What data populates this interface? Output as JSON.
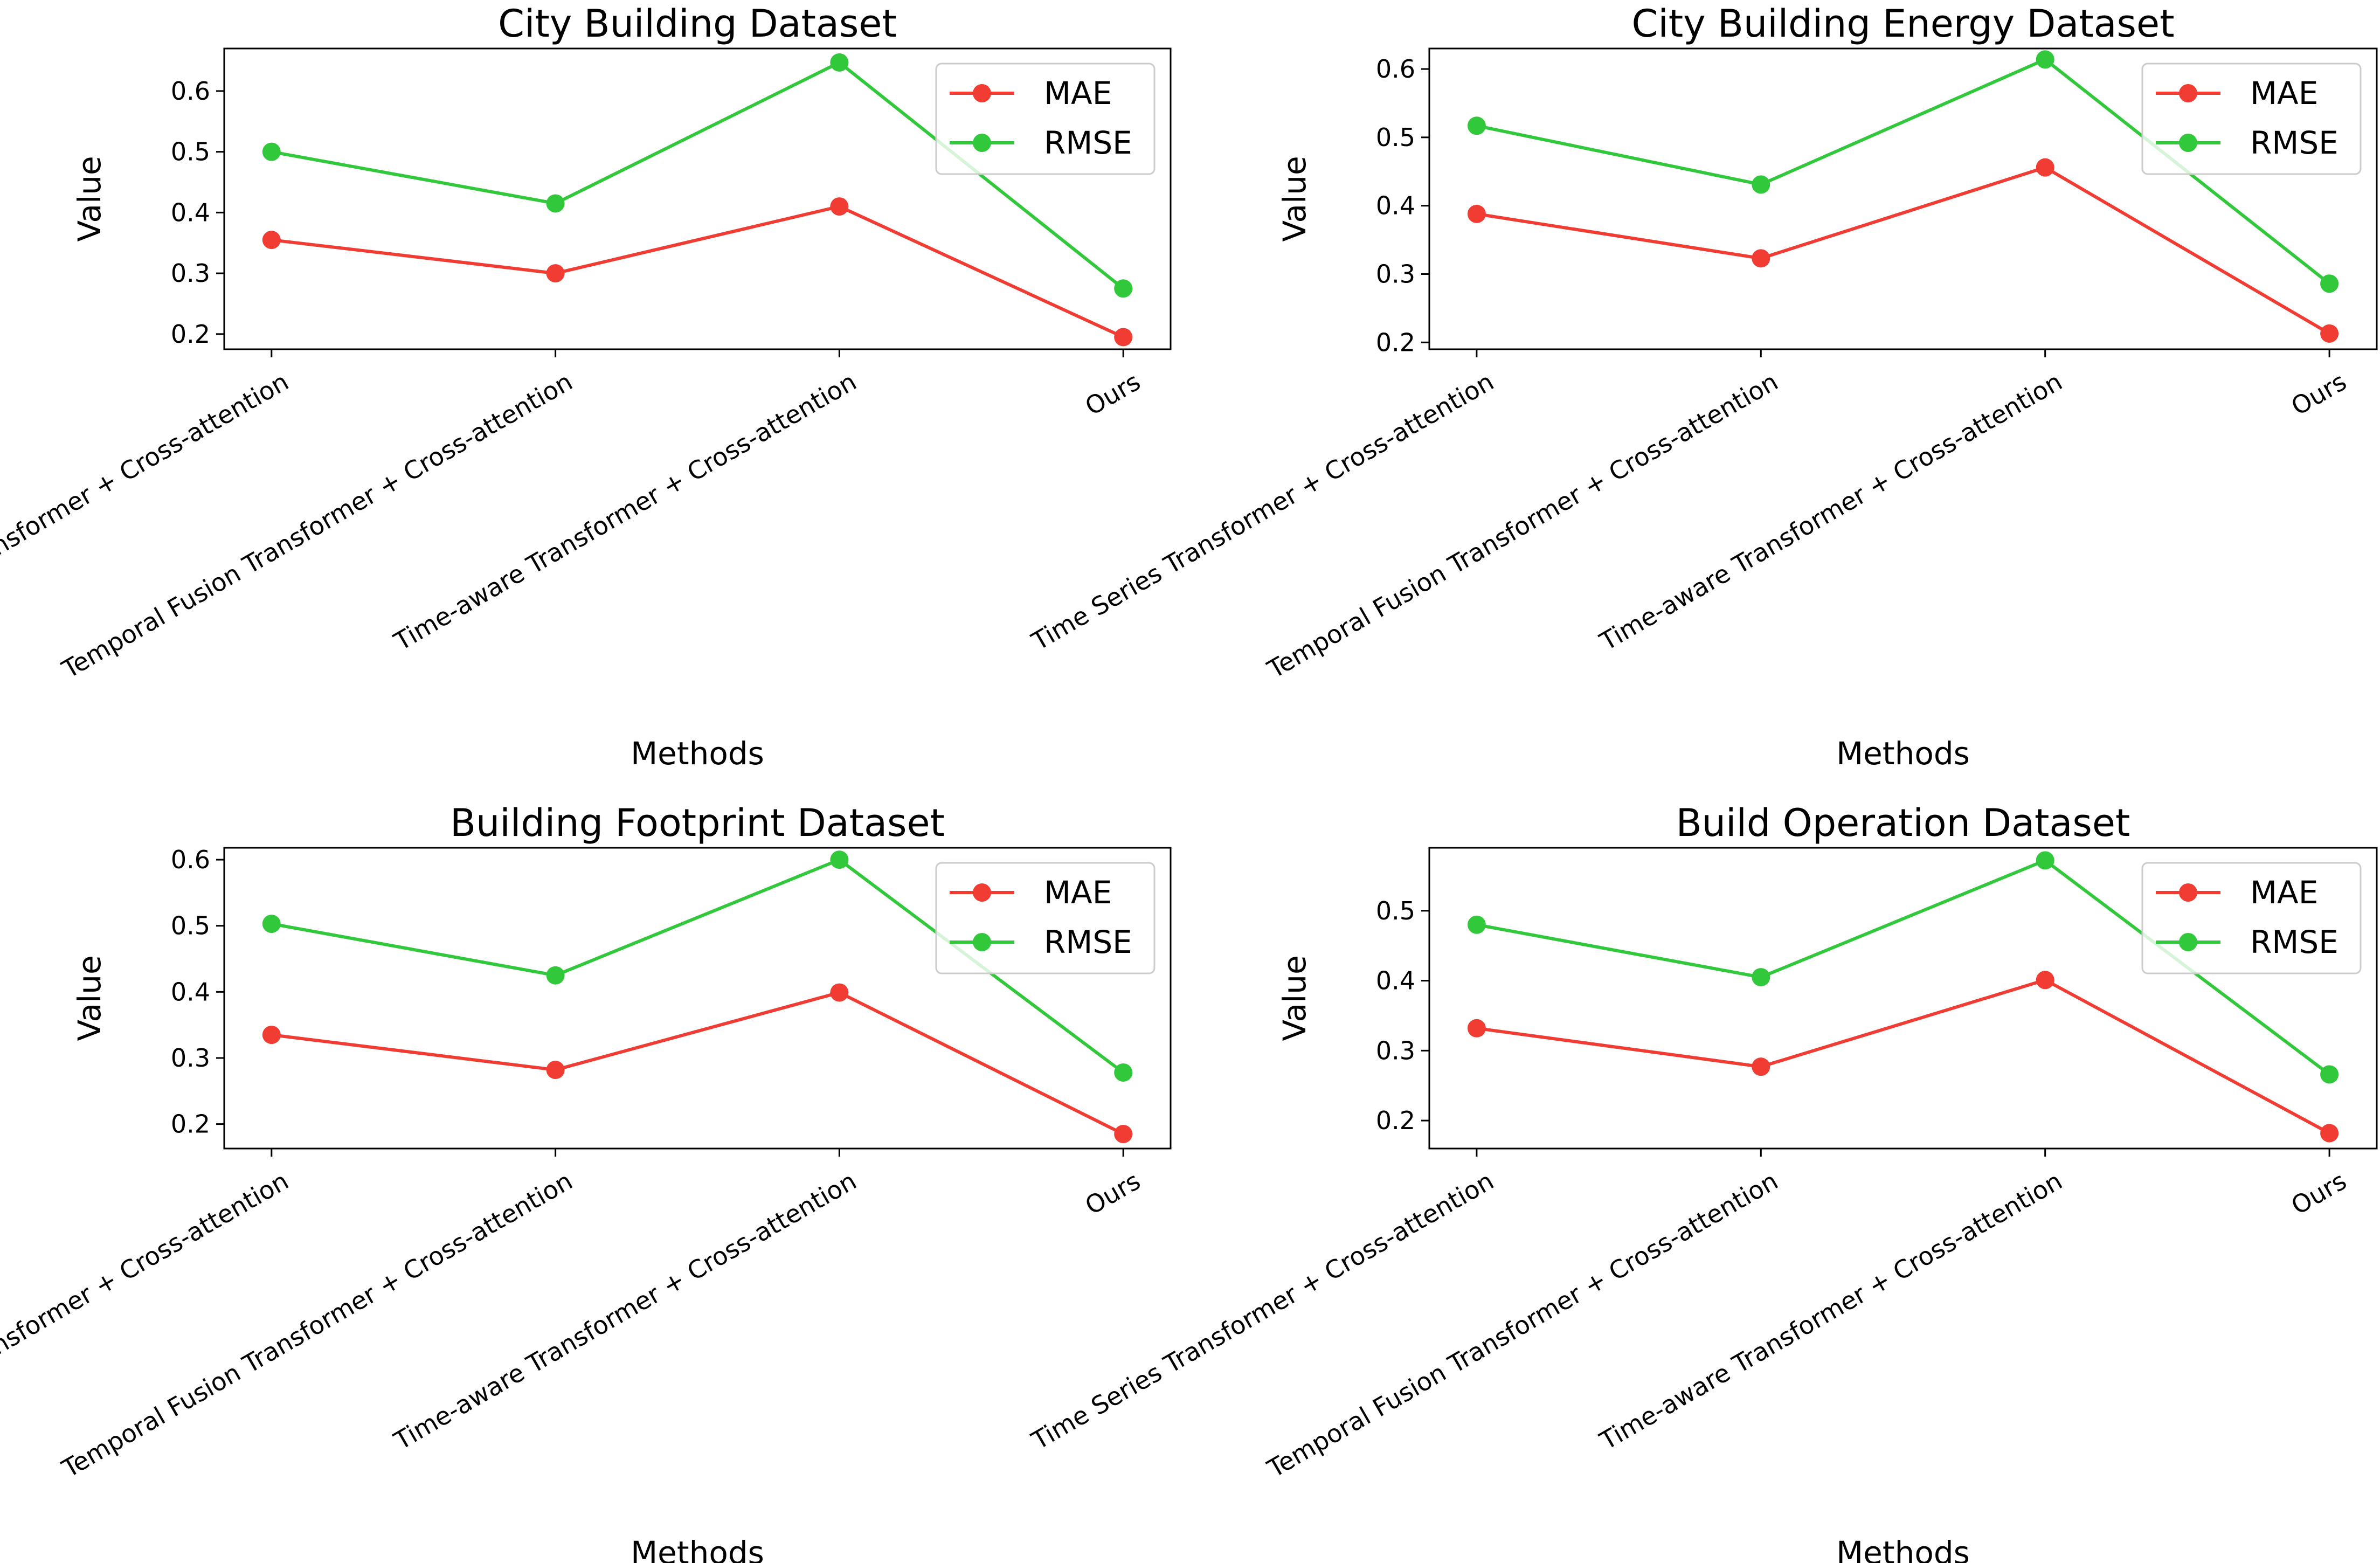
{
  "chart_data": [
    {
      "type": "line",
      "title": "City Building Dataset",
      "xlabel": "Methods",
      "ylabel": "Value",
      "categories": [
        "Time Series Transformer + Cross-attention",
        "Temporal Fusion Transformer + Cross-attention",
        "Time-aware Transformer + Cross-attention",
        "Ours"
      ],
      "ylim": [
        0.175,
        0.67
      ],
      "yticks": [
        0.2,
        0.3,
        0.4,
        0.5,
        0.6
      ],
      "yticklabels": [
        "0.2",
        "0.3",
        "0.4",
        "0.5",
        "0.6"
      ],
      "legend_position": "top-right",
      "series": [
        {
          "name": "MAE",
          "color": "#f03c32",
          "values": [
            0.355,
            0.3,
            0.41,
            0.195
          ]
        },
        {
          "name": "RMSE",
          "color": "#32c83c",
          "values": [
            0.5,
            0.415,
            0.647,
            0.275
          ]
        }
      ]
    },
    {
      "type": "line",
      "title": "City Building Energy Dataset",
      "xlabel": "Methods",
      "ylabel": "Value",
      "categories": [
        "Time Series Transformer + Cross-attention",
        "Temporal Fusion Transformer + Cross-attention",
        "Time-aware Transformer + Cross-attention",
        "Ours"
      ],
      "ylim": [
        0.19,
        0.63
      ],
      "yticks": [
        0.2,
        0.3,
        0.4,
        0.5,
        0.6
      ],
      "yticklabels": [
        "0.2",
        "0.3",
        "0.4",
        "0.5",
        "0.6"
      ],
      "legend_position": "top-right",
      "series": [
        {
          "name": "MAE",
          "color": "#f03c32",
          "values": [
            0.388,
            0.323,
            0.456,
            0.213
          ]
        },
        {
          "name": "RMSE",
          "color": "#32c83c",
          "values": [
            0.517,
            0.431,
            0.614,
            0.286
          ]
        }
      ]
    },
    {
      "type": "line",
      "title": "Building Footprint Dataset",
      "xlabel": "Methods",
      "ylabel": "Value",
      "categories": [
        "Time Series Transformer + Cross-attention",
        "Temporal Fusion Transformer + Cross-attention",
        "Time-aware Transformer + Cross-attention",
        "Ours"
      ],
      "ylim": [
        0.163,
        0.618
      ],
      "yticks": [
        0.2,
        0.3,
        0.4,
        0.5,
        0.6
      ],
      "yticklabels": [
        "0.2",
        "0.3",
        "0.4",
        "0.5",
        "0.6"
      ],
      "legend_position": "top-right",
      "series": [
        {
          "name": "MAE",
          "color": "#f03c32",
          "values": [
            0.335,
            0.282,
            0.399,
            0.185
          ]
        },
        {
          "name": "RMSE",
          "color": "#32c83c",
          "values": [
            0.503,
            0.425,
            0.6,
            0.278
          ]
        }
      ]
    },
    {
      "type": "line",
      "title": "Build Operation Dataset",
      "xlabel": "Methods",
      "ylabel": "Value",
      "categories": [
        "Time Series Transformer + Cross-attention",
        "Temporal Fusion Transformer + Cross-attention",
        "Time-aware Transformer + Cross-attention",
        "Ours"
      ],
      "ylim": [
        0.16,
        0.59
      ],
      "yticks": [
        0.2,
        0.3,
        0.4,
        0.5
      ],
      "yticklabels": [
        "0.2",
        "0.3",
        "0.4",
        "0.5"
      ],
      "legend_position": "top-right",
      "series": [
        {
          "name": "MAE",
          "color": "#f03c32",
          "values": [
            0.332,
            0.277,
            0.401,
            0.182
          ]
        },
        {
          "name": "RMSE",
          "color": "#32c83c",
          "values": [
            0.48,
            0.405,
            0.572,
            0.266
          ]
        }
      ]
    }
  ]
}
